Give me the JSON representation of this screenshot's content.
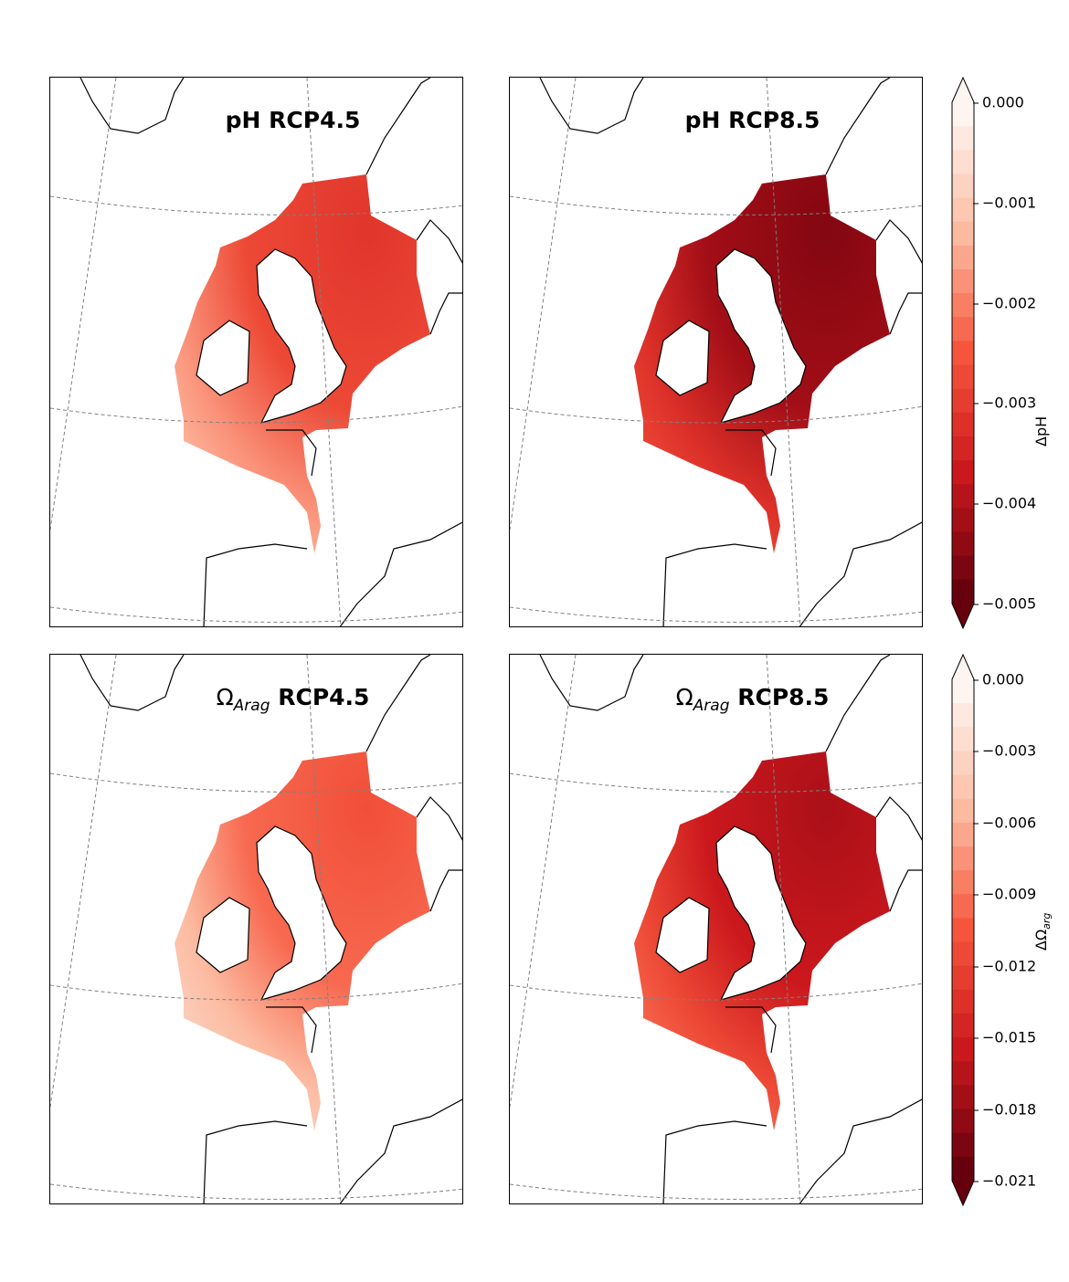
{
  "panels": [
    {
      "title": "pH RCP4.5",
      "symbol": "",
      "sub": "",
      "scenario": "",
      "variable": "pH",
      "intensity": 0.55
    },
    {
      "title": "pH RCP8.5",
      "symbol": "",
      "sub": "",
      "scenario": "",
      "variable": "pH",
      "intensity": 0.85
    },
    {
      "title": "",
      "symbol": "Ω",
      "sub": "Arag",
      "scenario": "RCP4.5",
      "variable": "Omega_arag",
      "intensity": 0.45
    },
    {
      "title": "",
      "symbol": "Ω",
      "sub": "Arag",
      "scenario": "RCP8.5",
      "variable": "Omega_arag",
      "intensity": 0.75
    }
  ],
  "colorbars": [
    {
      "label": "ΔpH",
      "label_sub": "",
      "ticks": [
        "0.000",
        "−0.001",
        "−0.002",
        "−0.003",
        "−0.004",
        "−0.005"
      ],
      "range": [
        -0.005,
        0.0
      ],
      "extend": "both",
      "cmap": "Reds_r"
    },
    {
      "label": "ΔΩ",
      "label_sub": "arg",
      "ticks": [
        "0.000",
        "−0.003",
        "−0.006",
        "−0.009",
        "−0.012",
        "−0.015",
        "−0.018",
        "−0.021"
      ],
      "range": [
        -0.021,
        0.0
      ],
      "extend": "both",
      "cmap": "Reds_r"
    }
  ],
  "colors": {
    "light": "#fff5f0",
    "mid": "#f6553c",
    "dark": "#67000d",
    "land": "#ffffff",
    "coast": "#000000",
    "graticule": "#808080"
  }
}
